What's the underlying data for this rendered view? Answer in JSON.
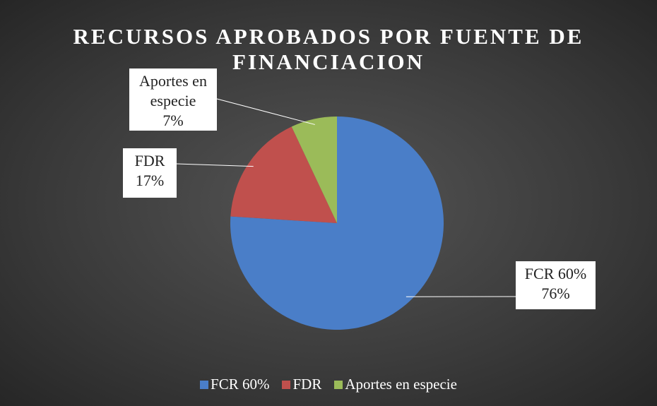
{
  "chart_data": {
    "type": "pie",
    "title": "RECURSOS APROBADOS POR FUENTE DE FINANCIACION",
    "categories": [
      "FCR 60%",
      "FDR",
      "Aportes en especie"
    ],
    "values": [
      76,
      17,
      7
    ],
    "value_labels": [
      "76%",
      "17%",
      "7%"
    ],
    "colors": [
      "#4a7ec8",
      "#c0504d",
      "#9bbb59"
    ],
    "legend": "bottom"
  }
}
